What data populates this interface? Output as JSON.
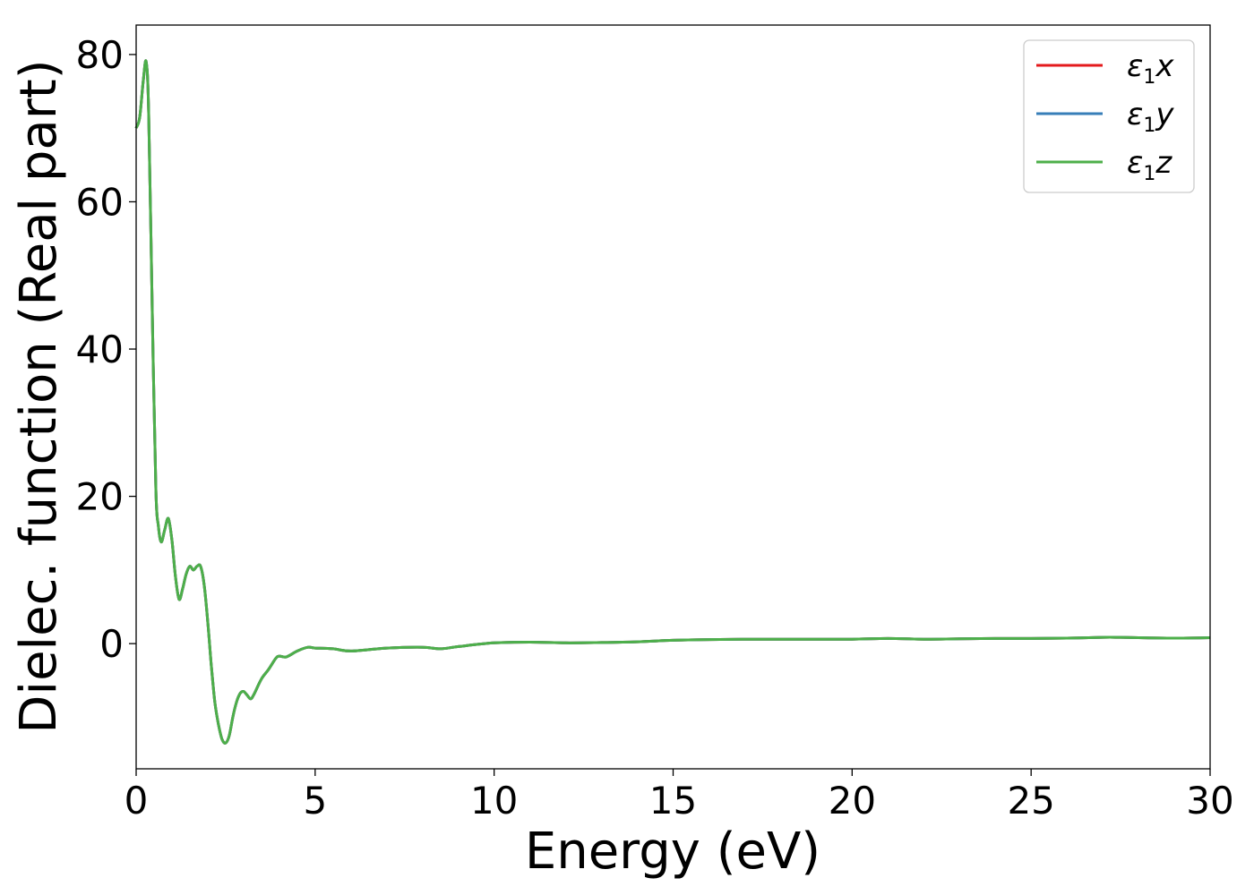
{
  "chart_data": {
    "type": "line",
    "title": "",
    "xlabel": "Energy (eV)",
    "ylabel": "Dielec. function (Real part)",
    "xlim": [
      0,
      30
    ],
    "ylim": [
      -17,
      84
    ],
    "xticks": [
      0,
      5,
      10,
      15,
      20,
      25,
      30
    ],
    "xtick_labels": [
      "0",
      "5",
      "10",
      "15",
      "20",
      "25",
      "30"
    ],
    "yticks": [
      0,
      20,
      40,
      60,
      80
    ],
    "ytick_labels": [
      "0",
      "20",
      "40",
      "60",
      "80"
    ],
    "grid": false,
    "legend_position": "top-right",
    "series": [
      {
        "name": "ε1x",
        "label_base": "ε",
        "label_sub": "1",
        "label_var": "x",
        "color": "#e41a1c"
      },
      {
        "name": "ε1y",
        "label_base": "ε",
        "label_sub": "1",
        "label_var": "y",
        "color": "#377eb8"
      },
      {
        "name": "ε1z",
        "label_base": "ε",
        "label_sub": "1",
        "label_var": "z",
        "color": "#4daf4a"
      }
    ],
    "x": [
      0.0,
      0.1,
      0.2,
      0.28,
      0.35,
      0.45,
      0.55,
      0.62,
      0.7,
      0.8,
      0.9,
      1.0,
      1.1,
      1.2,
      1.3,
      1.4,
      1.5,
      1.6,
      1.7,
      1.8,
      1.9,
      2.0,
      2.1,
      2.2,
      2.3,
      2.4,
      2.5,
      2.6,
      2.7,
      2.8,
      2.9,
      3.0,
      3.1,
      3.2,
      3.3,
      3.5,
      3.7,
      3.9,
      4.0,
      4.2,
      4.5,
      4.8,
      5.0,
      5.5,
      6.0,
      7.0,
      8.0,
      8.5,
      9.0,
      10.0,
      11.0,
      12.0,
      13.0,
      14.0,
      15.0,
      16.0,
      17.0,
      18.0,
      19.0,
      20.0,
      21.0,
      22.0,
      23.0,
      24.0,
      25.0,
      26.0,
      27.0,
      27.5,
      28.0,
      29.0,
      30.0
    ],
    "y": [
      70.0,
      71.5,
      76.5,
      79.0,
      72.0,
      45.0,
      21.0,
      16.0,
      13.8,
      15.5,
      17.0,
      14.0,
      9.0,
      6.0,
      7.5,
      9.5,
      10.5,
      10.0,
      10.5,
      10.5,
      8.0,
      3.0,
      -3.0,
      -8.0,
      -11.0,
      -13.0,
      -13.5,
      -12.5,
      -10.0,
      -8.0,
      -6.8,
      -6.5,
      -7.0,
      -7.5,
      -6.8,
      -4.8,
      -3.5,
      -2.0,
      -1.7,
      -1.8,
      -1.0,
      -0.5,
      -0.6,
      -0.7,
      -1.0,
      -0.6,
      -0.5,
      -0.7,
      -0.4,
      0.1,
      0.2,
      0.1,
      0.15,
      0.25,
      0.45,
      0.55,
      0.6,
      0.6,
      0.6,
      0.6,
      0.7,
      0.6,
      0.65,
      0.7,
      0.7,
      0.75,
      0.85,
      0.85,
      0.8,
      0.75,
      0.8
    ]
  }
}
